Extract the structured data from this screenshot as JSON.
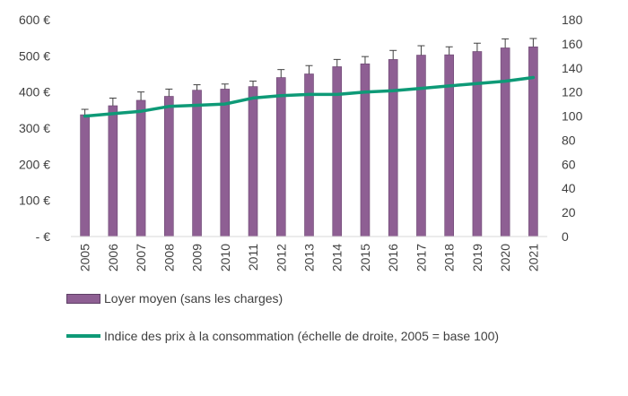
{
  "chart_data": {
    "type": "bar+line",
    "title": "",
    "categories": [
      "2005",
      "2006",
      "2007",
      "2008",
      "2009",
      "2010",
      "2011",
      "2012",
      "2013",
      "2014",
      "2015",
      "2016",
      "2017",
      "2018",
      "2019",
      "2020",
      "2021"
    ],
    "series": [
      {
        "name": "Loyer moyen (sans les charges)",
        "type": "bar",
        "axis": "left",
        "color": "#8e5f93",
        "values": [
          337,
          362,
          377,
          388,
          405,
          408,
          415,
          440,
          450,
          470,
          478,
          490,
          502,
          503,
          512,
          522,
          525
        ],
        "error_upper": [
          352,
          383,
          400,
          408,
          420,
          422,
          430,
          462,
          473,
          490,
          498,
          515,
          528,
          525,
          535,
          547,
          548
        ]
      },
      {
        "name": "Indice des prix à la consommation (échelle de droite, 2005 = base 100)",
        "type": "line",
        "axis": "right",
        "color": "#0e9a77",
        "values": [
          100,
          102,
          104,
          108,
          109,
          110,
          115,
          117,
          118,
          118,
          120,
          121,
          123,
          125,
          127,
          129,
          132
        ]
      }
    ],
    "y_left": {
      "min": 0,
      "max": 600,
      "ticks": [
        0,
        100,
        200,
        300,
        400,
        500,
        600
      ],
      "tick_labels": [
        "-   €",
        "100 €",
        "200 €",
        "300 €",
        "400 €",
        "500 €",
        "600 €"
      ]
    },
    "y_right": {
      "min": 0,
      "max": 180,
      "ticks": [
        0,
        20,
        40,
        60,
        80,
        100,
        120,
        140,
        160,
        180
      ],
      "tick_labels": [
        "0",
        "20",
        "40",
        "60",
        "80",
        "100",
        "120",
        "140",
        "160",
        "180"
      ]
    },
    "legend": {
      "position": "bottom-left",
      "bar_label": "Loyer moyen (sans les charges)",
      "line_label": "Indice des prix à la consommation (échelle de droite, 2005 = base 100)"
    },
    "grid": false
  }
}
